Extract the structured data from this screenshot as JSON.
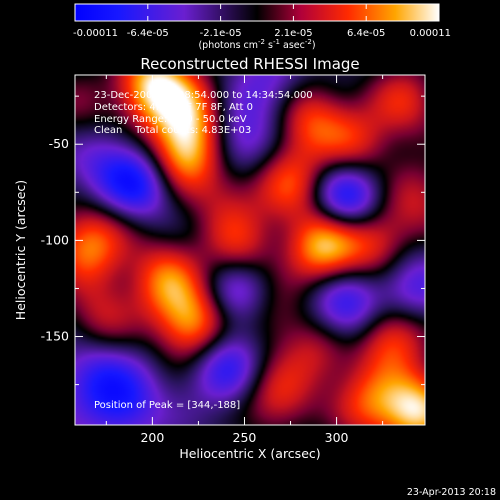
{
  "chart_data": {
    "type": "heatmap",
    "title": "Reconstructed RHESSI Image",
    "xlabel": "Heliocentric X (arcsec)",
    "ylabel": "Heliocentric Y (arcsec)",
    "xlim": [
      158,
      348
    ],
    "ylim": [
      -196,
      -14
    ],
    "x_ticks": [
      200,
      250,
      300
    ],
    "y_ticks": [
      -50,
      -100,
      -150
    ],
    "colorbar": {
      "min": -0.00011,
      "max": 0.00011,
      "tick_labels": [
        "-0.00011",
        "-6.4e-05",
        "-2.1e-05",
        "2.1e-05",
        "6.4e-05",
        "0.00011"
      ],
      "unit_base": "(photons cm",
      "unit_exp1": "-2",
      "unit_mid": " s",
      "unit_exp2": "-1",
      "unit_mid2": " asec",
      "unit_exp3": "-2",
      "unit_end": ")"
    },
    "annotations": [
      "23-Dec-2002 14:28:54.000 to 14:34:54.000",
      "Detectors: 4F 5F 6F 7F 8F, Att 0",
      "Energy Range: 25.0 - 50.0 keV",
      "Clean    Total counts: 4.83E+03"
    ],
    "peak_label": "Position of Peak = [344,-188]",
    "peak": {
      "x": 344,
      "y": -188
    },
    "sources": [
      {
        "x": 200,
        "y": -19,
        "v": 0.00011
      },
      {
        "x": 219,
        "y": -33,
        "v": 8e-05
      },
      {
        "x": 218,
        "y": -55,
        "v": 0.0001
      },
      {
        "x": 285,
        "y": -37,
        "v": 7e-05
      },
      {
        "x": 310,
        "y": -50,
        "v": 6e-05
      },
      {
        "x": 275,
        "y": -70,
        "v": 7e-05
      },
      {
        "x": 337,
        "y": -28,
        "v": 6e-05
      },
      {
        "x": 247,
        "y": -104,
        "v": 6e-05
      },
      {
        "x": 293,
        "y": -103,
        "v": 0.00011
      },
      {
        "x": 320,
        "y": -100,
        "v": 7e-05
      },
      {
        "x": 165,
        "y": -103,
        "v": 9e-05
      },
      {
        "x": 186,
        "y": -82,
        "v": 4e-05
      },
      {
        "x": 222,
        "y": -143,
        "v": 0.0001
      },
      {
        "x": 207,
        "y": -120,
        "v": 8e-05
      },
      {
        "x": 172,
        "y": -140,
        "v": 5e-05
      },
      {
        "x": 330,
        "y": -150,
        "v": 8e-05
      },
      {
        "x": 290,
        "y": -158,
        "v": 5e-05
      },
      {
        "x": 344,
        "y": -188,
        "v": 0.00011
      },
      {
        "x": 318,
        "y": -185,
        "v": 7e-05
      },
      {
        "x": 268,
        "y": -182,
        "v": 6e-05
      },
      {
        "x": 345,
        "y": -78,
        "v": 5e-05
      },
      {
        "x": 160,
        "y": -32,
        "v": 3e-05
      },
      {
        "x": 240,
        "y": -78,
        "v": 4e-05
      },
      {
        "x": 265,
        "y": -138,
        "v": 4e-05
      },
      {
        "x": 190,
        "y": -73,
        "v": -0.0001
      },
      {
        "x": 247,
        "y": -48,
        "v": -5e-05
      },
      {
        "x": 306,
        "y": -79,
        "v": -9e-05
      },
      {
        "x": 247,
        "y": -127,
        "v": -6e-05
      },
      {
        "x": 185,
        "y": -185,
        "v": -6e-05
      },
      {
        "x": 305,
        "y": -135,
        "v": -7e-05
      },
      {
        "x": 340,
        "y": -125,
        "v": -5e-05
      },
      {
        "x": 168,
        "y": -170,
        "v": -5e-05
      },
      {
        "x": 240,
        "y": -165,
        "v": -6e-05
      },
      {
        "x": 265,
        "y": -20,
        "v": -4e-05
      },
      {
        "x": 170,
        "y": -60,
        "v": -3e-05
      }
    ]
  },
  "footer": {
    "date": "23-Apr-2013 20:18"
  }
}
